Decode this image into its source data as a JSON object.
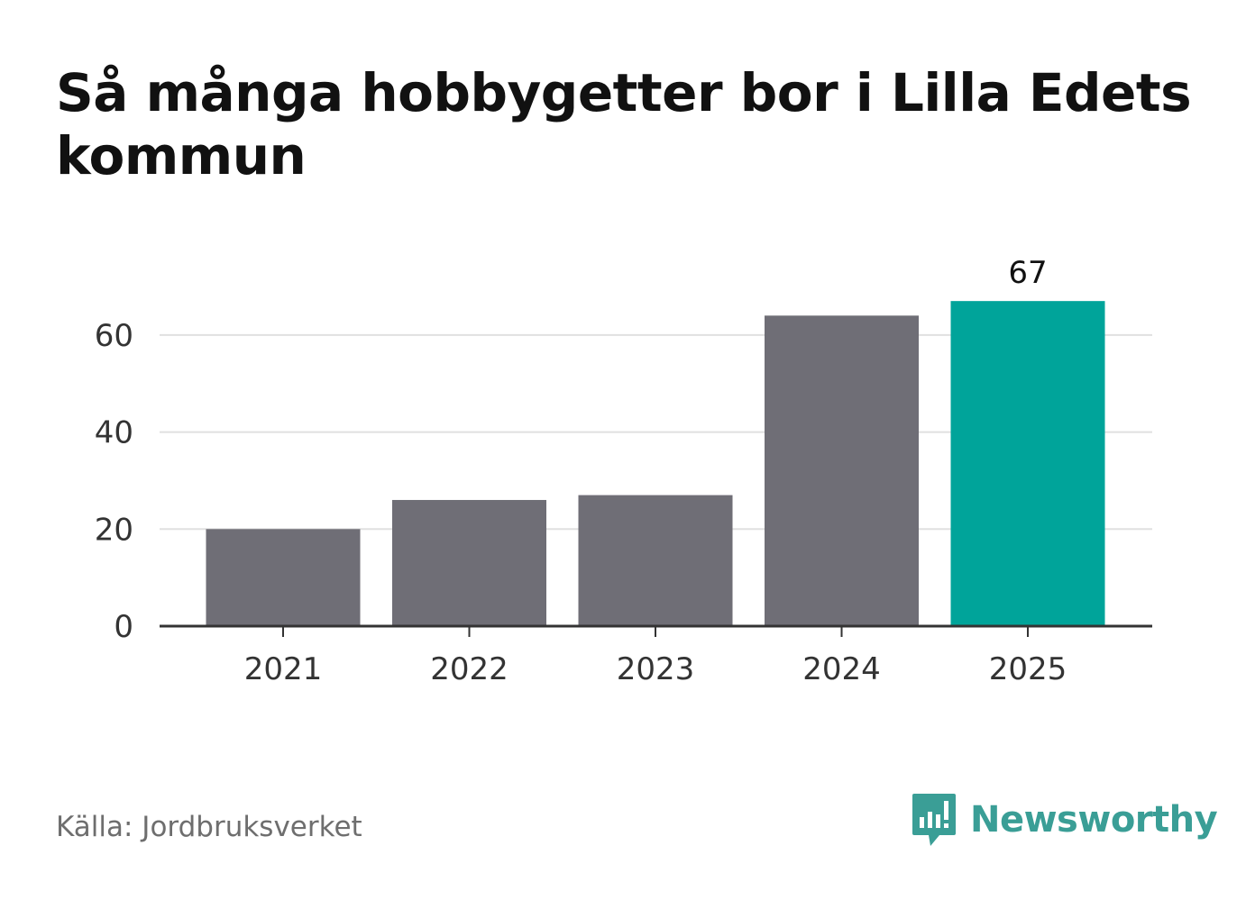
{
  "title": "Så många hobbygetter bor i Lilla Edets kommun",
  "source": "Källa: Jordbruksverket",
  "brand": {
    "name": "Newsworthy",
    "icon": "newsworthy-logo-icon",
    "color": "#3a9e96"
  },
  "chart_data": {
    "type": "bar",
    "title": "Så många hobbygetter bor i Lilla Edets kommun",
    "categories": [
      "2021",
      "2022",
      "2023",
      "2024",
      "2025"
    ],
    "values": [
      20,
      26,
      27,
      64,
      67
    ],
    "highlight_index": 4,
    "data_labels": [
      null,
      null,
      null,
      null,
      "67"
    ],
    "ylim": [
      0,
      70
    ],
    "yticks": [
      0,
      20,
      40,
      60
    ],
    "xlabel": "",
    "ylabel": "",
    "grid": true,
    "legend": "none",
    "colors": {
      "bar": "#6f6e76",
      "highlight": "#00a49a",
      "grid": "#e0e0e0",
      "axis": "#333333"
    }
  }
}
